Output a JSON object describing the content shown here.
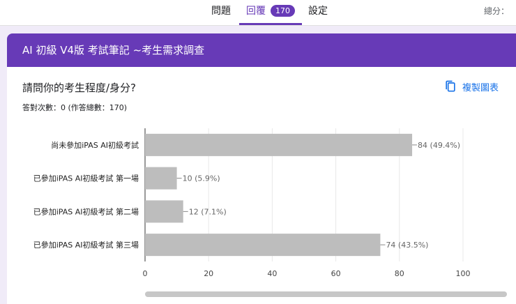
{
  "tabs": [
    {
      "label": "問題"
    },
    {
      "label": "回覆",
      "count": "170"
    },
    {
      "label": "設定"
    }
  ],
  "header": {
    "score_label": "總分："
  },
  "form": {
    "title": "AI 初級 V4版  考試筆記 ~考生需求調查"
  },
  "question": {
    "title": "請問你的考生程度/身分?",
    "subtitle": "答對次數：0 (作答總數：170)",
    "copy_label": "複製圖表"
  },
  "colors": {
    "accent": "#673ab7",
    "bar": "#bdbdbd",
    "link": "#1a73e8"
  },
  "icons": {
    "copy": "copy-icon"
  },
  "chart_data": {
    "type": "bar",
    "orientation": "horizontal",
    "categories": [
      "尚未參加iPAS AI初級考試",
      "已參加iPAS AI初級考試 第一場",
      "已參加iPAS AI初級考試 第二場",
      "已參加iPAS AI初級考試 第三場"
    ],
    "values": [
      84,
      10,
      12,
      74
    ],
    "value_labels": [
      "84 (49.4%)",
      "10 (5.9%)",
      "12 (7.1%)",
      "74 (43.5%)"
    ],
    "xlim": [
      0,
      100
    ],
    "xticks": [
      "0",
      "20",
      "40",
      "60",
      "80",
      "100"
    ],
    "grid": true
  }
}
